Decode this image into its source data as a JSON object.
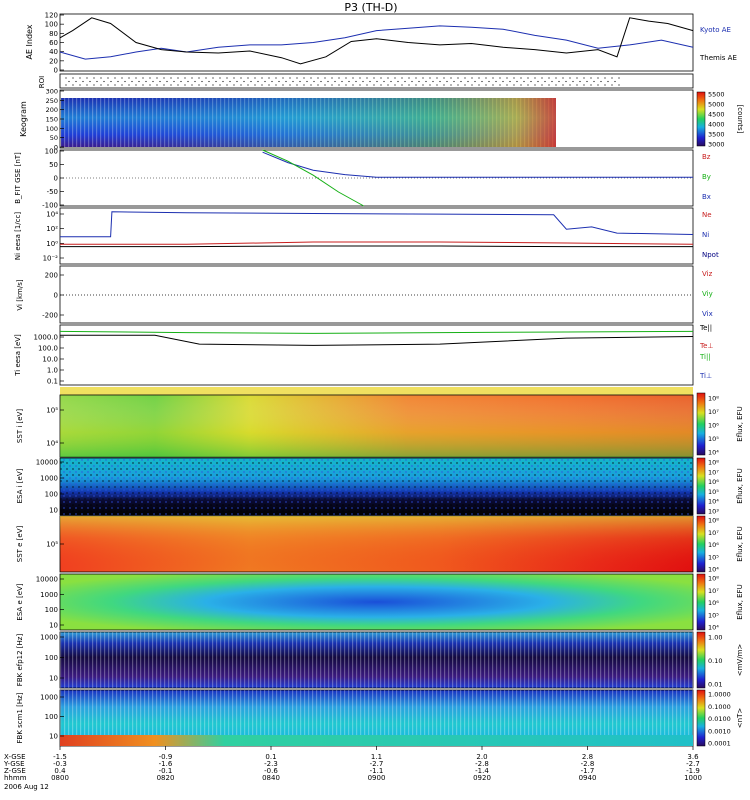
{
  "title": "P3 (TH-D)",
  "colors": {
    "kyoto": "#1c2fb0",
    "themis": "#000000",
    "bz": "#c81e1e",
    "by": "#16b016",
    "bx": "#1c2fb0",
    "ne": "#c81e1e",
    "ni": "#1c2fb0",
    "npot": "#000000"
  },
  "chart_data": [
    {
      "type": "line",
      "panel": "ae",
      "ylabel": "AE Index",
      "ylim": [
        0,
        120
      ],
      "yticks": [
        "0",
        "20",
        "40",
        "60",
        "80",
        "100",
        "120"
      ],
      "legend": [
        "Kyoto AE",
        "Themis AE"
      ],
      "series": [
        {
          "name": "Kyoto AE",
          "x": [
            0,
            0.04,
            0.08,
            0.12,
            0.16,
            0.2,
            0.25,
            0.3,
            0.35,
            0.4,
            0.45,
            0.5,
            0.55,
            0.6,
            0.65,
            0.7,
            0.75,
            0.8,
            0.85,
            0.9,
            0.95,
            1.0
          ],
          "values": [
            40,
            25,
            30,
            40,
            48,
            40,
            50,
            55,
            55,
            60,
            70,
            85,
            90,
            95,
            92,
            88,
            75,
            65,
            48,
            55,
            65,
            50
          ]
        },
        {
          "name": "Themis AE",
          "x": [
            0,
            0.02,
            0.05,
            0.08,
            0.12,
            0.16,
            0.2,
            0.25,
            0.3,
            0.35,
            0.38,
            0.42,
            0.46,
            0.5,
            0.55,
            0.6,
            0.65,
            0.7,
            0.75,
            0.8,
            0.85,
            0.88,
            0.9,
            0.93,
            0.96,
            1.0
          ],
          "values": [
            70,
            85,
            112,
            100,
            60,
            45,
            40,
            38,
            42,
            28,
            15,
            30,
            62,
            68,
            60,
            55,
            58,
            50,
            45,
            38,
            45,
            30,
            112,
            105,
            100,
            85
          ]
        }
      ]
    },
    {
      "type": "line",
      "panel": "b_fgs",
      "ylabel": "B_FIT GSE [nT]",
      "ylim": [
        -100,
        100
      ],
      "yticks": [
        "-100",
        "-50",
        "0",
        "50",
        "100"
      ],
      "legend": [
        "Bz",
        "By",
        "Bx"
      ],
      "series": [
        {
          "name": "Bx",
          "x": [
            0.32,
            0.36,
            0.4,
            0.45,
            0.5,
            1.0
          ],
          "values": [
            92,
            55,
            28,
            12,
            3,
            3
          ]
        },
        {
          "name": "By",
          "x": [
            0.32,
            0.36,
            0.4,
            0.44,
            0.48
          ],
          "values": [
            100,
            60,
            10,
            -50,
            -100
          ]
        }
      ]
    },
    {
      "type": "line",
      "panel": "density",
      "ylabel": "Ni eesa [1/cc]",
      "yscale": "log",
      "yticks": [
        "10⁻²",
        "10⁰",
        "10²",
        "10⁴"
      ],
      "legend": [
        "Ne",
        "Ni",
        "Npot"
      ],
      "series": [
        {
          "name": "Ni",
          "x": [
            0,
            0.08,
            0.082,
            0.2,
            0.4,
            0.6,
            0.78,
            0.8,
            0.84,
            0.88,
            1.0
          ],
          "values": [
            10,
            10,
            20000,
            15000,
            12000,
            10000,
            8000,
            100,
            200,
            30,
            20
          ]
        },
        {
          "name": "Ne",
          "x": [
            0,
            0.2,
            0.4,
            0.6,
            0.8,
            1.0
          ],
          "values": [
            1,
            1,
            2,
            2,
            1.5,
            1
          ]
        },
        {
          "name": "Npot",
          "x": [
            0,
            0.2,
            0.4,
            0.6,
            0.8,
            1.0
          ],
          "values": [
            0.5,
            0.5,
            0.6,
            0.6,
            0.5,
            0.5
          ]
        }
      ]
    },
    {
      "type": "line",
      "panel": "velocity",
      "ylabel": "Vi [km/s]",
      "yticks": [
        "200",
        "0",
        "-200"
      ],
      "legend": [
        "Viz",
        "Viy",
        "Vix"
      ],
      "series": []
    },
    {
      "type": "line",
      "panel": "temperature",
      "ylabel": "Ti eesa [eV]",
      "yscale": "log",
      "yticks": [
        "1000.0",
        "100.0",
        "10.0",
        "1.0",
        "0.1"
      ],
      "legend": [
        "Te||",
        "Te⊥",
        "Ti||",
        "Ti⊥"
      ],
      "series": [
        {
          "name": "Ti||",
          "x": [
            0,
            0.2,
            0.4,
            0.6,
            0.8,
            1.0
          ],
          "values": [
            1000,
            800,
            700,
            800,
            900,
            1000
          ]
        },
        {
          "name": "Te||",
          "x": [
            0,
            0.15,
            0.22,
            0.4,
            0.6,
            0.8,
            1.0
          ],
          "values": [
            500,
            500,
            100,
            80,
            100,
            300,
            400
          ]
        }
      ]
    },
    {
      "type": "heatmap",
      "panel": "kaleogram",
      "ylabel": "Keogram",
      "yticks": [
        "0",
        "50",
        "100",
        "150",
        "200",
        "250",
        "300"
      ],
      "colorbar_ticks": [
        "5500",
        "5000",
        "4500",
        "4000",
        "3500",
        "3000"
      ],
      "colorbar_unit": "[counts]"
    },
    {
      "type": "heatmap",
      "panel": "sst_ion",
      "ylabel": "SST i [eV]",
      "yticks": [
        "10⁵",
        "10⁴"
      ],
      "colorbar_ticks": [
        "10⁸",
        "10⁷",
        "10⁶",
        "10⁵",
        "10⁴"
      ],
      "colorbar_unit": "Eflux, EFU"
    },
    {
      "type": "heatmap",
      "panel": "esa_ion",
      "ylabel": "ESA i [eV]",
      "yticks": [
        "10000",
        "1000",
        "100",
        "10"
      ],
      "colorbar_ticks": [
        "10⁸",
        "10⁷",
        "10⁶",
        "10⁵",
        "10⁴",
        "10³"
      ],
      "colorbar_unit": "Eflux, EFU"
    },
    {
      "type": "heatmap",
      "panel": "sst_elec",
      "ylabel": "SST e [eV]",
      "yticks": [
        "10⁵"
      ],
      "colorbar_ticks": [
        "10⁸",
        "10⁷",
        "10⁶",
        "10⁵",
        "10⁴"
      ],
      "colorbar_unit": "Eflux, EFU"
    },
    {
      "type": "heatmap",
      "panel": "esa_elec",
      "ylabel": "ESA e [eV]",
      "yticks": [
        "10000",
        "1000",
        "100",
        "10"
      ],
      "colorbar_ticks": [
        "10⁸",
        "10⁷",
        "10⁶",
        "10⁵",
        "10⁴"
      ],
      "colorbar_unit": "Eflux, EFU"
    },
    {
      "type": "heatmap",
      "panel": "fbk_e",
      "ylabel": "FBK efp12 [Hz]",
      "yticks": [
        "1000",
        "100",
        "10"
      ],
      "colorbar_ticks": [
        "1.00",
        "0.10",
        "0.01"
      ],
      "colorbar_unit": "<mV/m>"
    },
    {
      "type": "heatmap",
      "panel": "fbk_b",
      "ylabel": "FBK scm1 [Hz]",
      "yticks": [
        "1000",
        "100",
        "10"
      ],
      "colorbar_ticks": [
        "1.0000",
        "0.1000",
        "0.0100",
        "0.0010",
        "0.0001"
      ],
      "colorbar_unit": "<nT>"
    }
  ],
  "roi_label": "ROI",
  "xaxis": {
    "row_labels": [
      "X-GSE",
      "Y-GSE",
      "Z-GSE",
      "hhmm",
      "2006 Aug 12"
    ],
    "ticks": [
      {
        "x": "-1.5",
        "y": "-0.3",
        "z": "0.4",
        "t": "0800"
      },
      {
        "x": "-0.9",
        "y": "-1.6",
        "z": "-0.1",
        "t": "0820"
      },
      {
        "x": "0.1",
        "y": "-2.3",
        "z": "-0.6",
        "t": "0840"
      },
      {
        "x": "1.1",
        "y": "-2.7",
        "z": "-1.1",
        "t": "0900"
      },
      {
        "x": "2.0",
        "y": "-2.8",
        "z": "-1.4",
        "t": "0920"
      },
      {
        "x": "2.8",
        "y": "-2.8",
        "z": "-1.7",
        "t": "0940"
      },
      {
        "x": "3.6",
        "y": "-2.7",
        "z": "-1.9",
        "t": "1000"
      }
    ]
  }
}
